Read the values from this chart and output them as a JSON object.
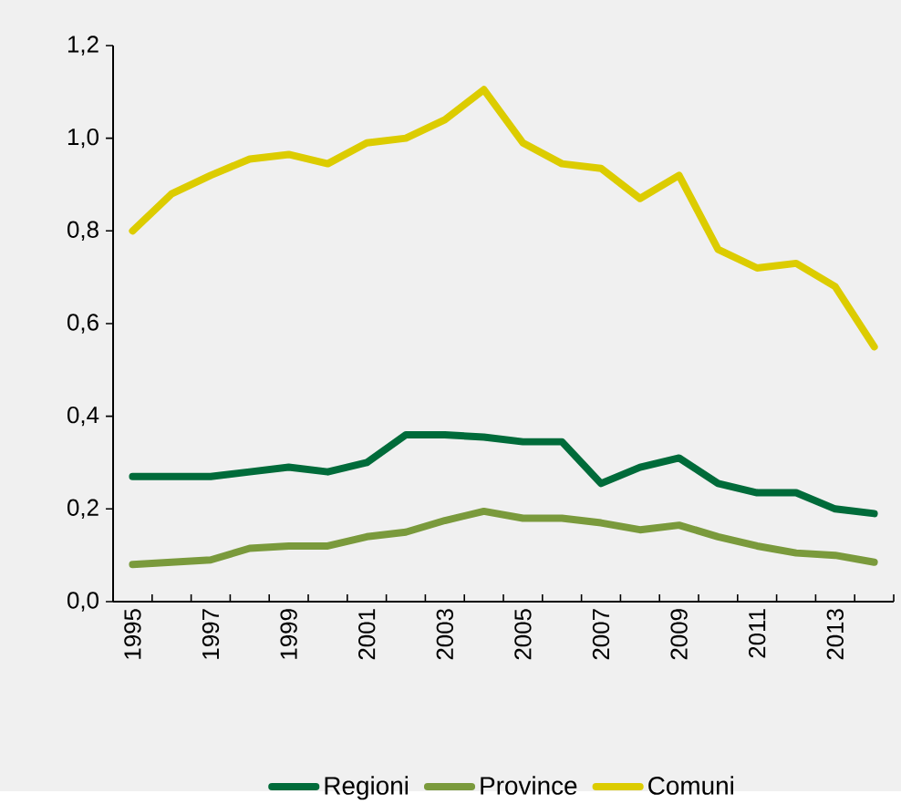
{
  "chart_data": {
    "type": "line",
    "categories": [
      "1995",
      null,
      "1997",
      null,
      "1999",
      null,
      "2001",
      null,
      "2003",
      null,
      "2005",
      null,
      "2007",
      null,
      "2009",
      null,
      "2011",
      null,
      "2013",
      null
    ],
    "series": [
      {
        "name": "Regioni",
        "color": "#006b3a",
        "values": [
          0.27,
          0.27,
          0.27,
          0.28,
          0.29,
          0.28,
          0.3,
          0.36,
          0.36,
          0.355,
          0.345,
          0.345,
          0.255,
          0.29,
          0.31,
          0.255,
          0.235,
          0.235,
          0.2,
          0.19
        ]
      },
      {
        "name": "Province",
        "color": "#7a9a3c",
        "values": [
          0.08,
          0.085,
          0.09,
          0.115,
          0.12,
          0.12,
          0.14,
          0.15,
          0.175,
          0.195,
          0.18,
          0.18,
          0.17,
          0.155,
          0.165,
          0.14,
          0.12,
          0.105,
          0.1,
          0.085
        ]
      },
      {
        "name": "Comuni",
        "color": "#dccc00",
        "values": [
          0.8,
          0.88,
          0.92,
          0.955,
          0.965,
          0.945,
          0.99,
          1.0,
          1.04,
          1.105,
          0.99,
          0.945,
          0.935,
          0.87,
          0.92,
          0.76,
          0.72,
          0.73,
          0.68,
          0.55
        ]
      }
    ],
    "ylim": [
      0,
      1.2
    ],
    "yticks": [
      {
        "value": 0,
        "label": "0,0"
      },
      {
        "value": 0.2,
        "label": "0,2"
      },
      {
        "value": 0.4,
        "label": "0,4"
      },
      {
        "value": 0.6,
        "label": "0,6"
      },
      {
        "value": 0.8,
        "label": "0,8"
      },
      {
        "value": 1.0,
        "label": "1,0"
      },
      {
        "value": 1.2,
        "label": "1,2"
      }
    ],
    "grid": false,
    "legend": "bottom",
    "marker": "none",
    "line_style": "solid"
  }
}
